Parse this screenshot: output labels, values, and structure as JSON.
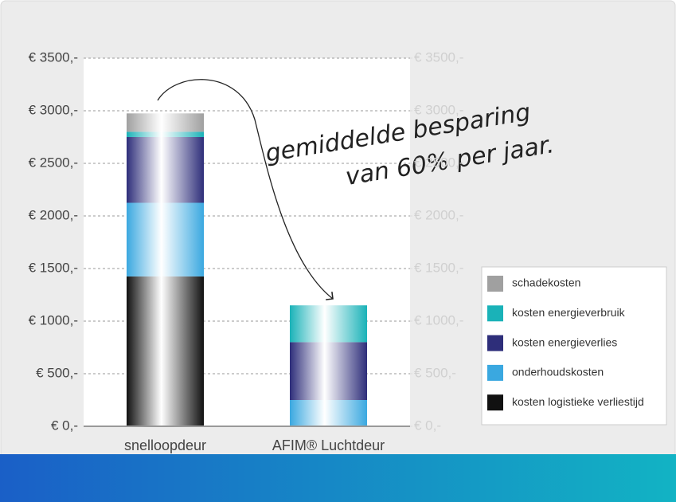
{
  "chart_data": {
    "type": "stacked_bar",
    "categories": [
      "snelloopdeur",
      "AFIM® Luchtdeur"
    ],
    "series": [
      {
        "name": "kosten logistieke verliestijd",
        "color": "#111111",
        "values": [
          1425,
          0
        ]
      },
      {
        "name": "onderhoudskosten",
        "color": "#3aa8e0",
        "values": [
          700,
          250
        ]
      },
      {
        "name": "kosten energieverlies",
        "color": "#2e2e7a",
        "values": [
          625,
          550
        ]
      },
      {
        "name": "kosten energieverbruik",
        "color": "#1ab2b8",
        "values": [
          50,
          350
        ]
      },
      {
        "name": "schadekosten",
        "color": "#a0a0a0",
        "values": [
          175,
          0
        ]
      }
    ],
    "ylim": [
      0,
      3500
    ],
    "yticks": [
      {
        "value": 0,
        "label": "€ 0,-"
      },
      {
        "value": 500,
        "label": "€ 500,-"
      },
      {
        "value": 1000,
        "label": "€ 1000,-"
      },
      {
        "value": 1500,
        "label": "€ 1500,-"
      },
      {
        "value": 2000,
        "label": "€ 2000,-"
      },
      {
        "value": 2500,
        "label": "€ 2500,-"
      },
      {
        "value": 3000,
        "label": "€ 3000,-"
      },
      {
        "value": 3500,
        "label": "€ 3500,-"
      }
    ],
    "y2lim": [
      0,
      3500
    ],
    "y2ticks": [
      {
        "value": 0,
        "label": "€ 0,-"
      },
      {
        "value": 500,
        "label": "€ 500,-"
      },
      {
        "value": 1000,
        "label": "€ 1000,-"
      },
      {
        "value": 1500,
        "label": "€ 1500,-"
      },
      {
        "value": 2000,
        "label": "€ 2000,-"
      },
      {
        "value": 2500,
        "label": "€ 2500,-"
      },
      {
        "value": 3000,
        "label": "€ 3000,-"
      },
      {
        "value": 3500,
        "label": "€ 3500,-"
      }
    ],
    "annotations": [
      "gemiddelde besparing",
      "van 60% per jaar."
    ],
    "grid": true,
    "legend": "lower right"
  }
}
